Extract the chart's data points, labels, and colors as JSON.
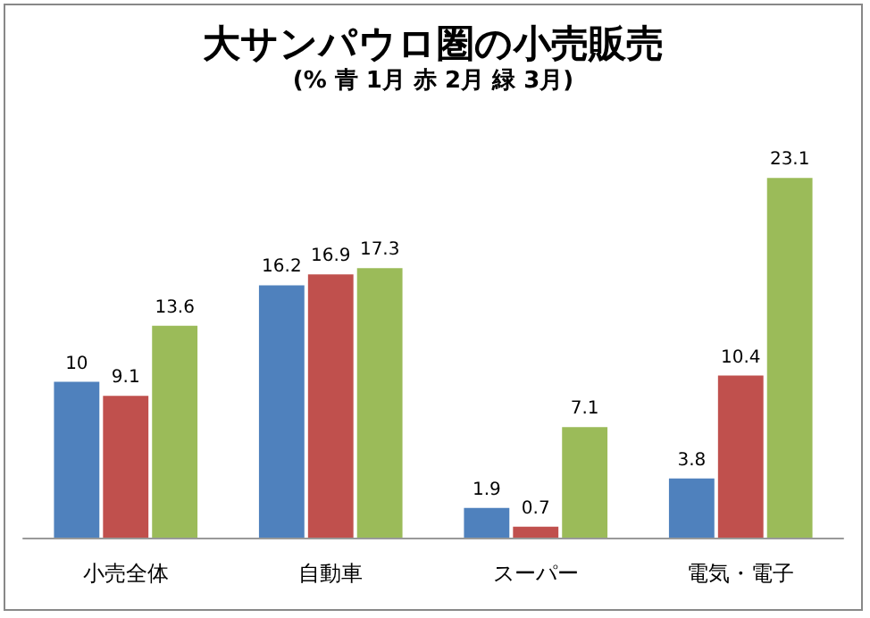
{
  "chart_data": {
    "type": "bar",
    "title": "大サンパウロ圏の小売販売",
    "subtitle": "(% 青 1月 赤 2月 緑 3月)",
    "categories": [
      "小売全体",
      "自動車",
      "スーパー",
      "電気・電子"
    ],
    "series": [
      {
        "color": "#4f81bd",
        "values": [
          10,
          16.2,
          1.9,
          3.8
        ]
      },
      {
        "color": "#c0504d",
        "values": [
          9.1,
          16.9,
          0.7,
          10.4
        ]
      },
      {
        "color": "#9bbb59",
        "values": [
          13.6,
          17.3,
          7.1,
          23.1
        ]
      }
    ],
    "data_labels": true
  }
}
